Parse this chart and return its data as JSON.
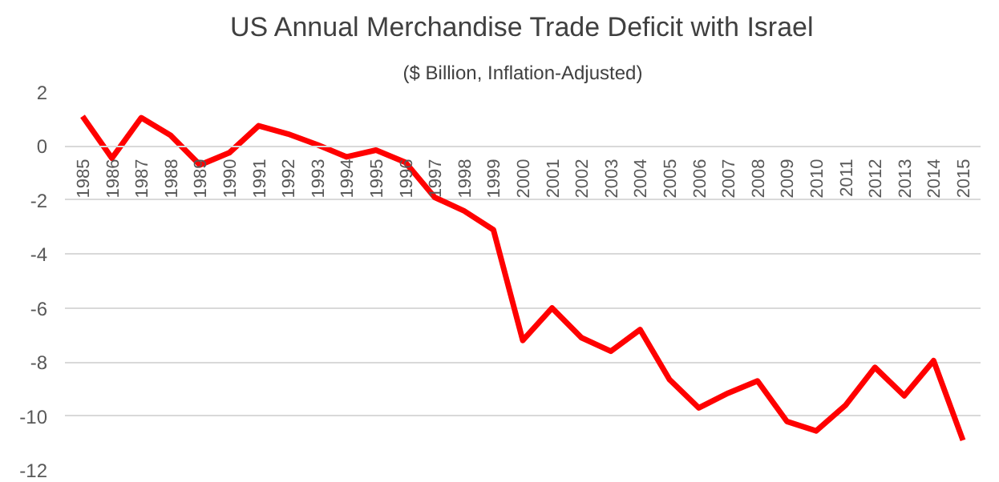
{
  "chart_data": {
    "type": "line",
    "title": "US Annual Merchandise Trade Deficit with Israel",
    "subtitle": "($ Billion, Inflation-Adjusted)",
    "categories": [
      "1985",
      "1986",
      "1987",
      "1988",
      "1989",
      "1990",
      "1991",
      "1992",
      "1993",
      "1994",
      "1995",
      "1996",
      "1997",
      "1998",
      "1999",
      "2000",
      "2001",
      "2002",
      "2003",
      "2004",
      "2005",
      "2006",
      "2007",
      "2008",
      "2009",
      "2010",
      "2011",
      "2012",
      "2013",
      "2014",
      "2015"
    ],
    "series": [
      {
        "color": "#ff0000",
        "values": [
          1.1,
          -0.45,
          1.05,
          0.4,
          -0.7,
          -0.25,
          0.75,
          0.45,
          0.05,
          -0.4,
          -0.15,
          -0.6,
          -1.9,
          -2.4,
          -3.1,
          -7.2,
          -6.0,
          -7.1,
          -7.6,
          -6.8,
          -8.65,
          -9.7,
          -9.15,
          -8.7,
          -10.2,
          -10.55,
          -9.6,
          -8.2,
          -9.25,
          -7.95,
          -10.9
        ]
      }
    ],
    "ylim": [
      -12,
      2
    ],
    "yticks": [
      -12,
      -10,
      -8,
      -6,
      -4,
      -2,
      0,
      2
    ],
    "grid": "y",
    "marker": "none",
    "line_style": "solid"
  }
}
